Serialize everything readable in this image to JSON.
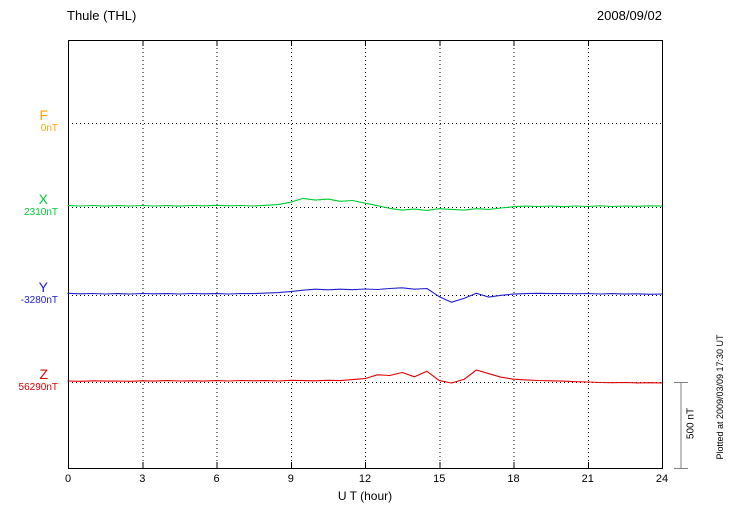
{
  "header": {
    "title": "Thule (THL)",
    "date": "2008/09/02"
  },
  "plotted_note": "Plotted at 2009/03/09 17:30 UT",
  "colors": {
    "axis": "#000000",
    "grid_dots": "#000000",
    "scale_bar": "#808080"
  },
  "chart_data": {
    "type": "line",
    "title": "Thule (THL)",
    "subtitle": "2008/09/02",
    "xlabel": "U T (hour)",
    "ylabel": "",
    "x_range_hours": [
      0,
      24
    ],
    "x_step_hours": 0.5,
    "x_ticks": [
      0,
      3,
      6,
      9,
      12,
      15,
      18,
      21,
      24
    ],
    "grid": "dotted vertical at 3h intervals, dotted horizontal baselines per component",
    "scale_bar": {
      "label": "500 nT",
      "value_nT": 500
    },
    "series": [
      {
        "name": "F",
        "baseline_label": "0nT",
        "baseline_value_nT": 0,
        "color": "#FFA500",
        "offsets_nT": []
      },
      {
        "name": "X",
        "baseline_label": "2310nT",
        "baseline_value_nT": 2310,
        "color": "#00CC33",
        "offsets_nT": [
          8,
          6,
          9,
          5,
          8,
          6,
          9,
          6,
          8,
          5,
          9,
          7,
          10,
          7,
          9,
          6,
          10,
          14,
          28,
          50,
          40,
          46,
          33,
          38,
          22,
          8,
          -8,
          -18,
          -12,
          -20,
          -10,
          -14,
          -18,
          -10,
          -14,
          -6,
          2,
          5,
          3,
          6,
          2,
          6,
          3,
          7,
          3,
          6,
          4,
          7,
          5
        ]
      },
      {
        "name": "Y",
        "baseline_label": "-3280nT",
        "baseline_value_nT": -3280,
        "color": "#2020D0",
        "offsets_nT": [
          10,
          7,
          9,
          6,
          8,
          6,
          9,
          7,
          8,
          6,
          9,
          7,
          8,
          6,
          9,
          8,
          11,
          14,
          20,
          28,
          34,
          30,
          34,
          31,
          35,
          32,
          38,
          42,
          34,
          38,
          -10,
          -42,
          -20,
          10,
          -12,
          -2,
          5,
          8,
          10,
          8,
          9,
          7,
          9,
          6,
          8,
          5,
          7,
          4,
          6
        ]
      },
      {
        "name": "Z",
        "baseline_label": "56290nT",
        "baseline_value_nT": 56290,
        "color": "#E00000",
        "offsets_nT": [
          6,
          4,
          7,
          5,
          6,
          4,
          7,
          5,
          8,
          6,
          7,
          5,
          8,
          6,
          9,
          7,
          8,
          6,
          10,
          8,
          7,
          10,
          8,
          14,
          20,
          42,
          38,
          55,
          30,
          62,
          8,
          -6,
          15,
          70,
          48,
          28,
          16,
          12,
          9,
          7,
          5,
          2,
          0,
          -3,
          -4,
          -3,
          -5,
          -4,
          -5
        ]
      }
    ]
  }
}
